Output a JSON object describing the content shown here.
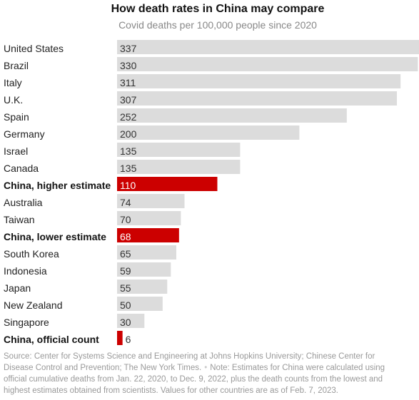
{
  "chart_data": {
    "type": "bar",
    "orientation": "horizontal",
    "title": "How death rates in China may compare",
    "subtitle": "Covid deaths per 100,000 people since 2020",
    "categories": [
      "United States",
      "Brazil",
      "Italy",
      "U.K.",
      "Spain",
      "Germany",
      "Israel",
      "Canada",
      "China, higher estimate",
      "Australia",
      "Taiwan",
      "China, lower estimate",
      "South Korea",
      "Indonesia",
      "Japan",
      "New Zealand",
      "Singapore",
      "China, official count"
    ],
    "values": [
      337,
      330,
      311,
      307,
      252,
      200,
      135,
      135,
      110,
      74,
      70,
      68,
      65,
      59,
      55,
      50,
      30,
      6
    ],
    "highlighted": [
      "China, higher estimate",
      "China, lower estimate",
      "China, official count"
    ],
    "colors": {
      "default_bar": "#dcdcdc",
      "highlight_bar": "#cc0000"
    },
    "grid": false,
    "legend": "none"
  },
  "source": {
    "line1": "Source: Center for Systems Science and Engineering at Johns Hopkins University; Chinese Center for",
    "line2a": "Disease Control and Prevention; The New York Times.",
    "separator": "•",
    "line2b": "Note: Estimates for China were calculated using",
    "line3": "official cumulative deaths from Jan. 22, 2020, to Dec. 9, 2022, plus the death counts from the lowest and",
    "line4": "highest estimates obtained from scientists. Values for other countries are as of Feb. 7, 2023."
  }
}
